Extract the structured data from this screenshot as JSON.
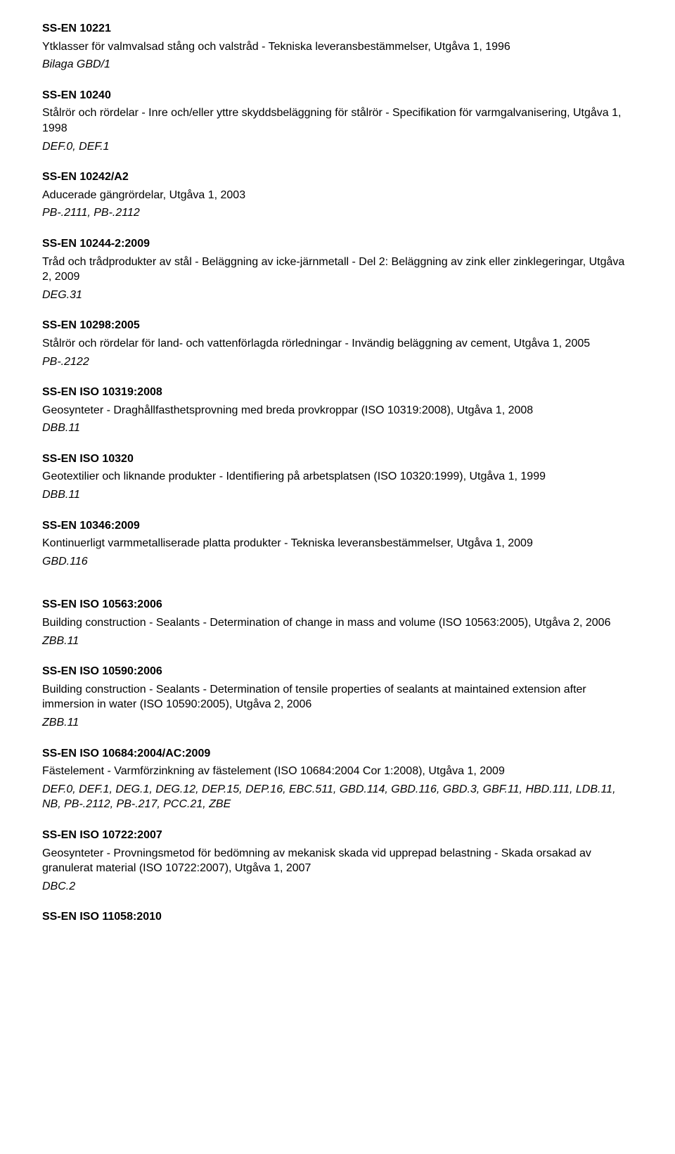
{
  "entries": [
    {
      "code": "SS-EN 10221",
      "desc": "Ytklasser för valmvalsad stång och valstråd - Tekniska leveransbestämmelser, Utgåva 1, 1996",
      "ref": "Bilaga GBD/1"
    },
    {
      "code": "SS-EN 10240",
      "desc": "Stålrör och rördelar - Inre och/eller yttre skyddsbeläggning för stålrör - Specifikation för varmgalvanisering, Utgåva 1, 1998",
      "ref": "DEF.0, DEF.1"
    },
    {
      "code": "SS-EN 10242/A2",
      "desc": "Aducerade gängrördelar, Utgåva 1, 2003",
      "ref": "PB-.2111, PB-.2112"
    },
    {
      "code": "SS-EN 10244-2:2009",
      "desc": "Tråd och trådprodukter av stål - Beläggning av icke-järnmetall - Del 2: Beläggning av zink eller zinklegeringar, Utgåva 2, 2009",
      "ref": "DEG.31"
    },
    {
      "code": "SS-EN 10298:2005",
      "desc": "Stålrör och rördelar för land- och vattenförlagda rörledningar - Invändig beläggning av cement, Utgåva 1, 2005",
      "ref": "PB-.2122"
    },
    {
      "code": "SS-EN ISO 10319:2008",
      "desc": "Geosynteter - Draghållfasthetsprovning med breda provkroppar (ISO 10319:2008), Utgåva 1, 2008",
      "ref": "DBB.11"
    },
    {
      "code": "SS-EN ISO 10320",
      "desc": "Geotextilier och liknande produkter - Identifiering på arbetsplatsen (ISO 10320:1999), Utgåva 1, 1999",
      "ref": "DBB.11"
    },
    {
      "code": "SS-EN 10346:2009",
      "desc": "Kontinuerligt varmmetalliserade platta produkter - Tekniska leveransbestämmelser, Utgåva 1, 2009",
      "ref": "GBD.116"
    },
    {
      "code": "SS-EN ISO 10563:2006",
      "desc": "Building construction - Sealants - Determination of change in mass and volume (ISO 10563:2005), Utgåva 2, 2006",
      "ref": "ZBB.11",
      "gapBefore": true
    },
    {
      "code": "SS-EN ISO 10590:2006",
      "desc": "Building construction - Sealants - Determination of tensile properties of sealants at maintained extension after immersion in water (ISO 10590:2005), Utgåva 2, 2006",
      "ref": "ZBB.11"
    },
    {
      "code": "SS-EN ISO 10684:2004/AC:2009",
      "desc": "Fästelement - Varmförzinkning av fästelement (ISO 10684:2004 Cor 1:2008), Utgåva 1, 2009",
      "ref": "DEF.0, DEF.1, DEG.1, DEG.12, DEP.15, DEP.16, EBC.511, GBD.114, GBD.116, GBD.3, GBF.11, HBD.111, LDB.11, NB, PB-.2112, PB-.217, PCC.21, ZBE"
    },
    {
      "code": "SS-EN ISO 10722:2007",
      "desc": "Geosynteter - Provningsmetod för bedömning av mekanisk skada vid upprepad belastning - Skada orsakad av granulerat material (ISO 10722:2007), Utgåva 1, 2007",
      "ref": "DBC.2"
    },
    {
      "code": "SS-EN ISO 11058:2010",
      "desc": "",
      "ref": ""
    }
  ]
}
